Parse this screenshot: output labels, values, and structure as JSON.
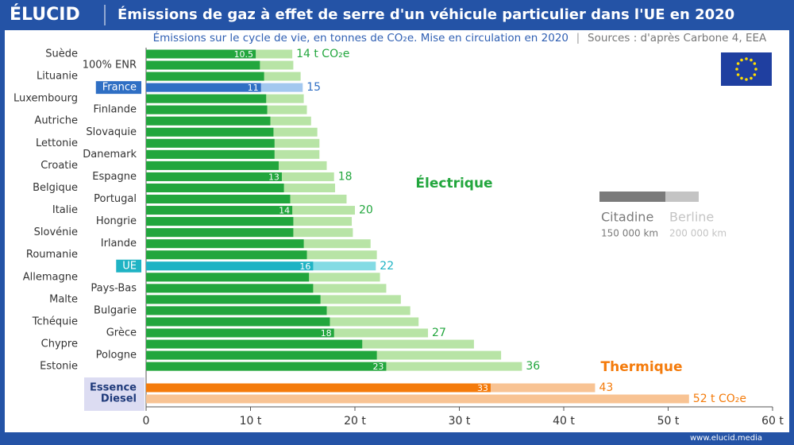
{
  "chart_data": {
    "type": "bar",
    "orientation": "horizontal",
    "brand": "ÉLUCID",
    "title": "Émissions de gaz à effet de serre d'un véhicule particulier dans l'UE en 2020",
    "subtitle": "Émissions sur le cycle de vie, en tonnes de CO₂e. Mise en circulation en 2020",
    "source": "Sources : d'après Carbone 4, EEA",
    "footer": "www.elucid.media",
    "categories": [
      "Suède",
      "100% ENR",
      "Lituanie",
      "France",
      "Luxembourg",
      "Finlande",
      "Autriche",
      "Slovaquie",
      "Lettonie",
      "Danemark",
      "Croatie",
      "Espagne",
      "Belgique",
      "Portugal",
      "Italie",
      "Hongrie",
      "Slovénie",
      "Irlande",
      "Roumanie",
      "UE",
      "Allemagne",
      "Pays-Bas",
      "Malte",
      "Bulgarie",
      "Tchéquie",
      "Grèce",
      "Chypre",
      "Pologne",
      "Estonie",
      "Essence",
      "Diesel"
    ],
    "groups": [
      {
        "name": "Électrique",
        "count": 29,
        "colors": [
          "#22a63d",
          "#b8e4a6"
        ]
      },
      {
        "name": "Thermique",
        "count": 2,
        "colors": [
          "#f47b0b",
          "#f8c393"
        ]
      }
    ],
    "highlights": [
      {
        "category": "France",
        "colors": [
          "#2f6fc4",
          "#a3c8ef"
        ]
      },
      {
        "category": "UE",
        "colors": [
          "#1fb3c4",
          "#84dbe4"
        ]
      }
    ],
    "series": [
      {
        "name": "Citadine",
        "note": "150 000 km",
        "color": "#7a7a7a",
        "values": [
          10.5,
          10.9,
          11.3,
          11,
          11.5,
          11.6,
          11.9,
          12.2,
          12.3,
          12.3,
          12.7,
          13,
          13.2,
          13.8,
          14,
          14.1,
          14.1,
          15.1,
          15.4,
          16,
          15.6,
          16,
          16.7,
          17.3,
          17.6,
          18,
          20.7,
          22.1,
          23,
          33,
          null
        ],
        "value_labels": [
          "10.5",
          null,
          null,
          "11",
          null,
          null,
          null,
          null,
          null,
          null,
          null,
          "13",
          null,
          null,
          "14",
          null,
          null,
          null,
          null,
          "16",
          null,
          null,
          null,
          null,
          null,
          "18",
          null,
          null,
          "23",
          "33",
          null
        ]
      },
      {
        "name": "Berline",
        "note": "200 000 km",
        "color": "#c4c4c4",
        "values": [
          14,
          14.1,
          14.8,
          15,
          15.1,
          15.4,
          15.8,
          16.4,
          16.6,
          16.6,
          17.3,
          18,
          18.1,
          19.2,
          20,
          19.7,
          19.8,
          21.5,
          22.1,
          22,
          22.4,
          23,
          24.4,
          25.3,
          26.1,
          27,
          31.4,
          34,
          36,
          43,
          52
        ],
        "value_labels": [
          "14 t CO₂e",
          null,
          null,
          "15",
          null,
          null,
          null,
          null,
          null,
          null,
          null,
          "18",
          null,
          null,
          "20",
          null,
          null,
          null,
          null,
          "22",
          null,
          null,
          null,
          null,
          null,
          "27",
          null,
          null,
          "36",
          "43",
          "52 t CO₂e"
        ]
      }
    ],
    "xlim": [
      0,
      60
    ],
    "xticks": [
      0,
      {
        "value": 10,
        "label": "10 t"
      },
      {
        "value": 20,
        "label": "20 t"
      },
      {
        "value": 30,
        "label": "30 t"
      },
      {
        "value": 40,
        "label": "40 t"
      },
      {
        "value": 50,
        "label": "50 t"
      },
      {
        "value": 60,
        "label": "60 t"
      }
    ]
  }
}
